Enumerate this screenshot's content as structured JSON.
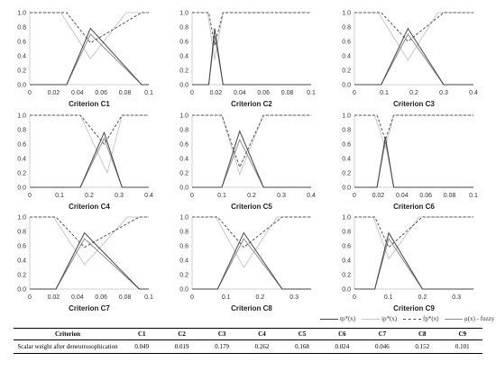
{
  "colors": {
    "tp": "#444444",
    "ip": "#c8c8c8",
    "fp": "#555555",
    "mu": "#8c8c8c",
    "axis": "#d0d0d0",
    "text": "#333333"
  },
  "chart_data": [
    {
      "type": "line",
      "xlabel": "Criterion C1",
      "xlim": [
        0,
        0.1
      ],
      "xticks": [
        "0",
        "0.02",
        "0.04",
        "0.06",
        "0.08",
        "0.1"
      ],
      "ylim": [
        0,
        1
      ],
      "yticks": [
        "0.0",
        "0.2",
        "0.4",
        "0.6",
        "0.8",
        "1.0"
      ],
      "series": [
        {
          "name": "tp*(x)",
          "x": [
            0,
            0.031,
            0.051,
            0.094,
            0.1
          ],
          "y": [
            0,
            0,
            0.78,
            0,
            0
          ]
        },
        {
          "name": "ip*(x)",
          "x": [
            0,
            0.026,
            0.051,
            0.081,
            0.1
          ],
          "y": [
            1,
            1,
            0.36,
            1,
            1
          ]
        },
        {
          "name": "fp*(x)",
          "x": [
            0,
            0.031,
            0.051,
            0.094,
            0.1
          ],
          "y": [
            1,
            1,
            0.58,
            1,
            1
          ]
        },
        {
          "name": "μ(x) - fuzzy",
          "x": [
            0,
            0.031,
            0.051,
            0.094,
            0.1
          ],
          "y": [
            0,
            0,
            0.7,
            0,
            0
          ]
        }
      ]
    },
    {
      "type": "line",
      "xlabel": "Criterion C2",
      "xlim": [
        0,
        0.1
      ],
      "xticks": [
        "0",
        "0.02",
        "0.04",
        "0.06",
        "0.08",
        "0.1"
      ],
      "ylim": [
        0,
        1
      ],
      "yticks": [
        "0.0",
        "0.2",
        "0.4",
        "0.6",
        "0.8",
        "1.0"
      ],
      "series": [
        {
          "name": "tp*(x)",
          "x": [
            0,
            0.014,
            0.019,
            0.026,
            0.1
          ],
          "y": [
            0,
            0,
            0.78,
            0,
            0
          ]
        },
        {
          "name": "ip*(x)",
          "x": [
            0,
            0.013,
            0.019,
            0.026,
            0.1
          ],
          "y": [
            1,
            1,
            0.35,
            1,
            1
          ]
        },
        {
          "name": "fp*(x)",
          "x": [
            0,
            0.014,
            0.019,
            0.026,
            0.1
          ],
          "y": [
            1,
            1,
            0.55,
            1,
            1
          ]
        },
        {
          "name": "μ(x) - fuzzy",
          "x": [
            0,
            0.014,
            0.019,
            0.026,
            0.1
          ],
          "y": [
            0,
            0,
            0.68,
            0,
            0
          ]
        }
      ]
    },
    {
      "type": "line",
      "xlabel": "Criterion C3",
      "xlim": [
        0,
        0.4
      ],
      "xticks": [
        "0",
        "0.1",
        "0.2",
        "0.3",
        "0.4"
      ],
      "ylim": [
        0,
        1
      ],
      "yticks": [
        "0.0",
        "0.2",
        "0.4",
        "0.6",
        "0.8",
        "1.0"
      ],
      "series": [
        {
          "name": "tp*(x)",
          "x": [
            0,
            0.09,
            0.18,
            0.3,
            0.4
          ],
          "y": [
            0,
            0,
            0.78,
            0,
            0
          ]
        },
        {
          "name": "ip*(x)",
          "x": [
            0,
            0.08,
            0.18,
            0.28,
            0.4
          ],
          "y": [
            1,
            1,
            0.34,
            1,
            1
          ]
        },
        {
          "name": "fp*(x)",
          "x": [
            0,
            0.09,
            0.18,
            0.3,
            0.4
          ],
          "y": [
            1,
            1,
            0.6,
            1,
            1
          ]
        },
        {
          "name": "μ(x) - fuzzy",
          "x": [
            0,
            0.09,
            0.18,
            0.3,
            0.4
          ],
          "y": [
            0,
            0,
            0.7,
            0,
            0
          ]
        }
      ]
    },
    {
      "type": "line",
      "xlabel": "Criterion C4",
      "xlim": [
        0,
        0.4
      ],
      "xticks": [
        "0",
        "0.1",
        "0.2",
        "0.3",
        "0.4"
      ],
      "ylim": [
        0,
        1
      ],
      "yticks": [
        "0.0",
        "0.2",
        "0.4",
        "0.6",
        "0.8",
        "1.0"
      ],
      "series": [
        {
          "name": "tp*(x)",
          "x": [
            0,
            0.17,
            0.25,
            0.31,
            0.4
          ],
          "y": [
            0,
            0,
            0.76,
            0,
            0
          ]
        },
        {
          "name": "ip*(x)",
          "x": [
            0,
            0.17,
            0.26,
            0.31,
            0.4
          ],
          "y": [
            1,
            1,
            0.2,
            1,
            1
          ]
        },
        {
          "name": "fp*(x)",
          "x": [
            0,
            0.17,
            0.25,
            0.31,
            0.4
          ],
          "y": [
            1,
            1,
            0.6,
            1,
            1
          ]
        },
        {
          "name": "μ(x) - fuzzy",
          "x": [
            0,
            0.17,
            0.25,
            0.31,
            0.4
          ],
          "y": [
            0,
            0,
            0.68,
            0,
            0
          ]
        }
      ]
    },
    {
      "type": "line",
      "xlabel": "Criterion C5",
      "xlim": [
        0,
        0.4
      ],
      "xticks": [
        "0",
        "0.1",
        "0.2",
        "0.3",
        "0.4"
      ],
      "ylim": [
        0,
        1
      ],
      "yticks": [
        "0.0",
        "0.2",
        "0.4",
        "0.6",
        "0.8",
        "1.0"
      ],
      "series": [
        {
          "name": "tp*(x)",
          "x": [
            0,
            0.1,
            0.16,
            0.24,
            0.4
          ],
          "y": [
            0,
            0,
            0.78,
            0,
            0
          ]
        },
        {
          "name": "ip*(x)",
          "x": [
            0,
            0.1,
            0.16,
            0.24,
            0.4
          ],
          "y": [
            1,
            1,
            0.18,
            1,
            1
          ]
        },
        {
          "name": "fp*(x)",
          "x": [
            0,
            0.1,
            0.16,
            0.24,
            0.4
          ],
          "y": [
            1,
            1,
            0.28,
            1,
            1
          ]
        },
        {
          "name": "μ(x) - fuzzy",
          "x": [
            0,
            0.1,
            0.16,
            0.24,
            0.4
          ],
          "y": [
            0,
            0,
            0.66,
            0,
            0
          ]
        }
      ]
    },
    {
      "type": "line",
      "xlabel": "Criterion C6",
      "xlim": [
        0,
        0.1
      ],
      "xticks": [
        "0",
        "0.02",
        "0.04",
        "0.06",
        "0.08",
        "0.1"
      ],
      "ylim": [
        0,
        1
      ],
      "yticks": [
        "0.0",
        "0.2",
        "0.4",
        "0.6",
        "0.8",
        "1.0"
      ],
      "series": [
        {
          "name": "tp*(x)",
          "x": [
            0,
            0.019,
            0.026,
            0.033,
            0.1
          ],
          "y": [
            0,
            0,
            0.7,
            0,
            0
          ]
        },
        {
          "name": "ip*(x)",
          "x": [
            0,
            0.017,
            0.026,
            0.033,
            0.1
          ],
          "y": [
            1,
            1,
            0.55,
            1,
            1
          ]
        },
        {
          "name": "fp*(x)",
          "x": [
            0,
            0.019,
            0.026,
            0.033,
            0.1
          ],
          "y": [
            1,
            1,
            0.66,
            1,
            1
          ]
        },
        {
          "name": "μ(x) - fuzzy",
          "x": [
            0,
            0.019,
            0.026,
            0.033,
            0.1
          ],
          "y": [
            0,
            0,
            0.64,
            0,
            0
          ]
        }
      ]
    },
    {
      "type": "line",
      "xlabel": "Criterion C7",
      "xlim": [
        0,
        0.1
      ],
      "xticks": [
        "0",
        "0.02",
        "0.04",
        "0.06",
        "0.08",
        "0.1"
      ],
      "ylim": [
        0,
        1
      ],
      "yticks": [
        "0.0",
        "0.2",
        "0.4",
        "0.6",
        "0.8",
        "1.0"
      ],
      "series": [
        {
          "name": "tp*(x)",
          "x": [
            0,
            0.022,
            0.046,
            0.092,
            0.1
          ],
          "y": [
            0,
            0,
            0.78,
            0,
            0
          ]
        },
        {
          "name": "ip*(x)",
          "x": [
            0,
            0.02,
            0.046,
            0.082,
            0.1
          ],
          "y": [
            1,
            1,
            0.34,
            1,
            1
          ]
        },
        {
          "name": "fp*(x)",
          "x": [
            0,
            0.022,
            0.046,
            0.092,
            0.1
          ],
          "y": [
            1,
            1,
            0.58,
            1,
            1
          ]
        },
        {
          "name": "μ(x) - fuzzy",
          "x": [
            0,
            0.022,
            0.046,
            0.092,
            0.1
          ],
          "y": [
            0,
            0,
            0.7,
            0,
            0
          ]
        }
      ]
    },
    {
      "type": "line",
      "xlabel": "Criterion C8",
      "xlim": [
        0,
        0.35
      ],
      "xticks": [
        "0",
        "0.1",
        "0.2",
        "0.3"
      ],
      "ylim": [
        0,
        1
      ],
      "yticks": [
        "0.0",
        "0.2",
        "0.4",
        "0.6",
        "0.8",
        "1.0"
      ],
      "series": [
        {
          "name": "tp*(x)",
          "x": [
            0,
            0.075,
            0.152,
            0.265,
            0.35
          ],
          "y": [
            0,
            0,
            0.78,
            0,
            0
          ]
        },
        {
          "name": "ip*(x)",
          "x": [
            0,
            0.07,
            0.152,
            0.25,
            0.35
          ],
          "y": [
            1,
            1,
            0.3,
            1,
            1
          ]
        },
        {
          "name": "fp*(x)",
          "x": [
            0,
            0.075,
            0.152,
            0.265,
            0.35
          ],
          "y": [
            1,
            1,
            0.58,
            1,
            1
          ]
        },
        {
          "name": "μ(x) - fuzzy",
          "x": [
            0,
            0.075,
            0.152,
            0.265,
            0.35
          ],
          "y": [
            0,
            0,
            0.7,
            0,
            0
          ]
        }
      ]
    },
    {
      "type": "line",
      "xlabel": "Criterion C9",
      "xlim": [
        0,
        0.35
      ],
      "xticks": [
        "0",
        "0.1",
        "0.2",
        "0.3"
      ],
      "ylim": [
        0,
        1
      ],
      "yticks": [
        "0.0",
        "0.2",
        "0.4",
        "0.6",
        "0.8",
        "1.0"
      ],
      "series": [
        {
          "name": "tp*(x)",
          "x": [
            0,
            0.06,
            0.101,
            0.2,
            0.35
          ],
          "y": [
            0,
            0,
            0.78,
            0,
            0
          ]
        },
        {
          "name": "ip*(x)",
          "x": [
            0,
            0.055,
            0.101,
            0.19,
            0.35
          ],
          "y": [
            1,
            1,
            0.42,
            1,
            1
          ]
        },
        {
          "name": "fp*(x)",
          "x": [
            0,
            0.06,
            0.101,
            0.2,
            0.35
          ],
          "y": [
            1,
            1,
            0.58,
            1,
            1
          ]
        },
        {
          "name": "μ(x) - fuzzy",
          "x": [
            0,
            0.06,
            0.101,
            0.2,
            0.35
          ],
          "y": [
            0,
            0,
            0.7,
            0,
            0
          ]
        }
      ]
    }
  ],
  "legend": {
    "items": [
      {
        "label": "tp*(x)",
        "style": "solid",
        "color": "#444444"
      },
      {
        "label": "ip*(x)",
        "style": "solid",
        "color": "#c8c8c8"
      },
      {
        "label": "fp*(x)",
        "style": "dashed",
        "color": "#555555"
      },
      {
        "label": "μ(x) - fuzzy",
        "style": "solid",
        "color": "#8c8c8c"
      }
    ]
  },
  "table": {
    "header": [
      "Criterion",
      "C1",
      "C2",
      "C3",
      "C4",
      "C5",
      "C6",
      "C7",
      "C8",
      "C9"
    ],
    "row_label": "Scalar weight after deneutrosophication",
    "values": [
      "0.049",
      "0.019",
      "0.179",
      "0.262",
      "0.168",
      "0.024",
      "0.046",
      "0.152",
      "0.101"
    ]
  }
}
